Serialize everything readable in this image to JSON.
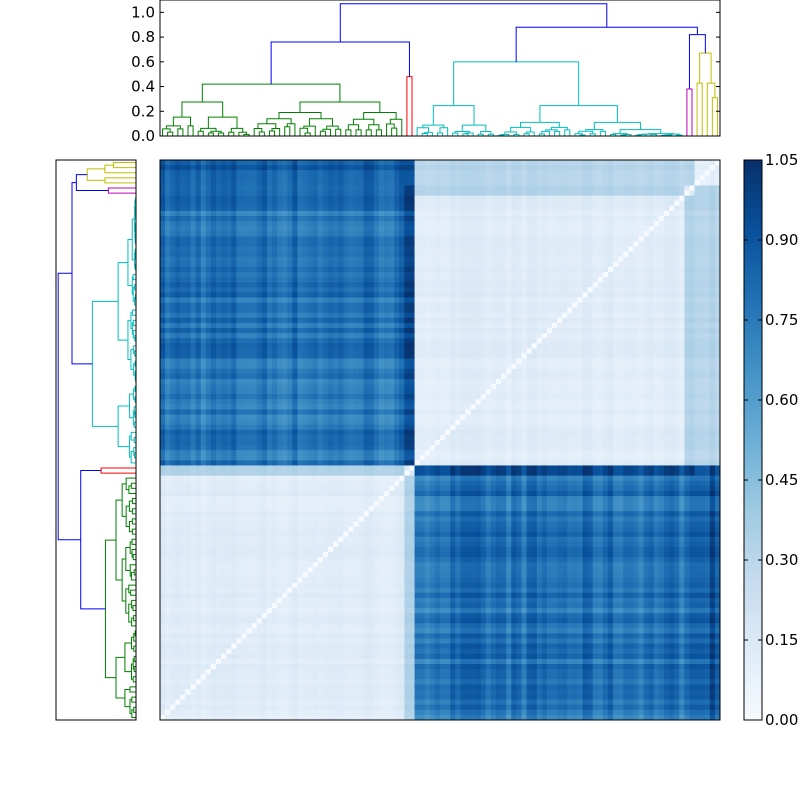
{
  "chart_data": {
    "type": "heatmap",
    "title": "",
    "n_leaves": 110,
    "colormap": "Blues",
    "colors": {
      "cluster_green": "#008000",
      "cluster_red": "#ff0000",
      "cluster_cyan": "#00bfbf",
      "cluster_magenta": "#bf00bf",
      "cluster_yellow": "#bfbf00",
      "link_above_threshold": "#0000ff",
      "cmap_low": "#f7fbff",
      "cmap_high": "#08306b"
    },
    "colorbar": {
      "range": [
        0.0,
        1.05
      ],
      "ticks": [
        "0.00",
        "0.15",
        "0.30",
        "0.45",
        "0.60",
        "0.75",
        "0.90",
        "1.05"
      ]
    },
    "top_dendrogram": {
      "ylim": [
        0.0,
        1.1
      ],
      "y_ticks": [
        "0.0",
        "0.2",
        "0.4",
        "0.6",
        "0.8",
        "1.0"
      ],
      "clusters": [
        {
          "color": "green",
          "leaves": 48,
          "merge_height": 0.42
        },
        {
          "color": "red",
          "leaves": 2,
          "merge_height": 0.48
        },
        {
          "color": "cyan",
          "leaves": 53,
          "merge_height": 0.6
        },
        {
          "color": "magenta",
          "leaves": 2,
          "merge_height": 0.38
        },
        {
          "color": "yellow",
          "leaves": 5,
          "merge_height": 0.67
        }
      ],
      "top_merges": [
        0.76,
        0.88,
        1.07
      ]
    },
    "left_dendrogram": {
      "clusters_top_to_bottom": [
        {
          "color": "yellow",
          "leaves": 5
        },
        {
          "color": "magenta",
          "leaves": 2
        },
        {
          "color": "cyan",
          "leaves": 53
        },
        {
          "color": "red",
          "leaves": 2
        },
        {
          "color": "green",
          "leaves": 48
        }
      ]
    },
    "matrix_blocks": {
      "description_values": {
        "within_cluster_low": 0.08,
        "between_cluster_high": 0.78,
        "diagonal": 0.0
      },
      "column_groups_left_to_right": [
        {
          "cluster": "green",
          "size": 48
        },
        {
          "cluster": "red",
          "size": 2
        },
        {
          "cluster": "cyan",
          "size": 53
        },
        {
          "cluster": "magenta",
          "size": 2
        },
        {
          "cluster": "yellow",
          "size": 5
        }
      ],
      "row_groups_top_to_bottom": [
        {
          "cluster": "yellow",
          "size": 5
        },
        {
          "cluster": "magenta",
          "size": 2
        },
        {
          "cluster": "cyan",
          "size": 53
        },
        {
          "cluster": "red",
          "size": 2
        },
        {
          "cluster": "green",
          "size": 48
        }
      ]
    }
  }
}
